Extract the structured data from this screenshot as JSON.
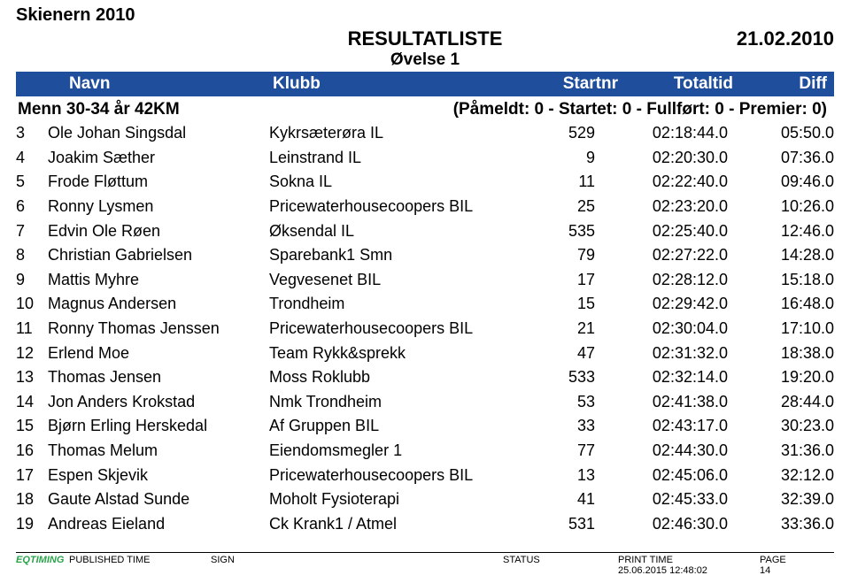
{
  "event_title": "Skienern 2010",
  "result_list_label": "RESULTATLISTE",
  "date_label": "21.02.2010",
  "ovelse_label": "Øvelse 1",
  "columns": {
    "navn": "Navn",
    "klubb": "Klubb",
    "startnr": "Startnr",
    "totaltid": "Totaltid",
    "diff": "Diff"
  },
  "category": {
    "label": "Menn 30-34 år 42KM",
    "meta": "(Påmeldt: 0 - Startet: 0 - Fullført: 0 - Premier: 0)"
  },
  "rows": [
    {
      "rank": "3",
      "name": "Ole Johan Singsdal",
      "club": "Kykrsæterøra IL",
      "startnr": "529",
      "totaltid": "02:18:44.0",
      "diff": "05:50.0"
    },
    {
      "rank": "4",
      "name": "Joakim Sæther",
      "club": "Leinstrand IL",
      "startnr": "9",
      "totaltid": "02:20:30.0",
      "diff": "07:36.0"
    },
    {
      "rank": "5",
      "name": "Frode Fløttum",
      "club": "Sokna IL",
      "startnr": "11",
      "totaltid": "02:22:40.0",
      "diff": "09:46.0"
    },
    {
      "rank": "6",
      "name": "Ronny Lysmen",
      "club": "Pricewaterhousecoopers BIL",
      "startnr": "25",
      "totaltid": "02:23:20.0",
      "diff": "10:26.0"
    },
    {
      "rank": "7",
      "name": "Edvin Ole Røen",
      "club": "Øksendal IL",
      "startnr": "535",
      "totaltid": "02:25:40.0",
      "diff": "12:46.0"
    },
    {
      "rank": "8",
      "name": "Christian Gabrielsen",
      "club": "Sparebank1 Smn",
      "startnr": "79",
      "totaltid": "02:27:22.0",
      "diff": "14:28.0"
    },
    {
      "rank": "9",
      "name": "Mattis Myhre",
      "club": "Vegvesenet BIL",
      "startnr": "17",
      "totaltid": "02:28:12.0",
      "diff": "15:18.0"
    },
    {
      "rank": "10",
      "name": "Magnus Andersen",
      "club": "Trondheim",
      "startnr": "15",
      "totaltid": "02:29:42.0",
      "diff": "16:48.0"
    },
    {
      "rank": "11",
      "name": "Ronny Thomas Jenssen",
      "club": "Pricewaterhousecoopers BIL",
      "startnr": "21",
      "totaltid": "02:30:04.0",
      "diff": "17:10.0"
    },
    {
      "rank": "12",
      "name": "Erlend Moe",
      "club": "Team Rykk&sprekk",
      "startnr": "47",
      "totaltid": "02:31:32.0",
      "diff": "18:38.0"
    },
    {
      "rank": "13",
      "name": "Thomas Jensen",
      "club": "Moss Roklubb",
      "startnr": "533",
      "totaltid": "02:32:14.0",
      "diff": "19:20.0"
    },
    {
      "rank": "14",
      "name": "Jon Anders Krokstad",
      "club": "Nmk Trondheim",
      "startnr": "53",
      "totaltid": "02:41:38.0",
      "diff": "28:44.0"
    },
    {
      "rank": "15",
      "name": "Bjørn Erling Herskedal",
      "club": "Af Gruppen BIL",
      "startnr": "33",
      "totaltid": "02:43:17.0",
      "diff": "30:23.0"
    },
    {
      "rank": "16",
      "name": "Thomas Melum",
      "club": "Eiendomsmegler 1",
      "startnr": "77",
      "totaltid": "02:44:30.0",
      "diff": "31:36.0"
    },
    {
      "rank": "17",
      "name": "Espen Skjevik",
      "club": "Pricewaterhousecoopers BIL",
      "startnr": "13",
      "totaltid": "02:45:06.0",
      "diff": "32:12.0"
    },
    {
      "rank": "18",
      "name": "Gaute Alstad Sunde",
      "club": "Moholt Fysioterapi",
      "startnr": "41",
      "totaltid": "02:45:33.0",
      "diff": "32:39.0"
    },
    {
      "rank": "19",
      "name": "Andreas Eieland",
      "club": "Ck Krank1 / Atmel",
      "startnr": "531",
      "totaltid": "02:46:30.0",
      "diff": "33:36.0"
    }
  ],
  "footer": {
    "logo": "EQTIMING",
    "published_time_label": "PUBLISHED TIME",
    "sign_label": "SIGN",
    "status_label": "STATUS",
    "print_time_label": "PRINT TIME",
    "print_time_value": "25.06.2015 12:48:02",
    "page_label": "PAGE",
    "page_value": "14"
  },
  "styling": {
    "header_bg": "#1f4e9c",
    "header_text": "#ffffff",
    "body_bg": "#ffffff",
    "text_color": "#000000",
    "logo_color": "#2aa34a",
    "title_fontsize": 20,
    "header_fontsize": 22,
    "colheader_fontsize": 19,
    "row_fontsize": 18,
    "footer_fontsize": 11
  }
}
